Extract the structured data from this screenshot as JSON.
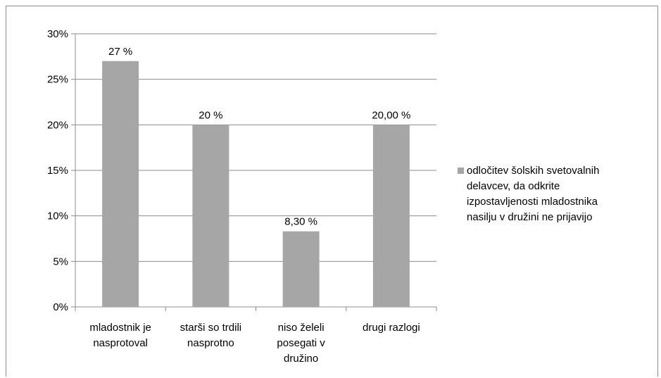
{
  "chart_data": {
    "type": "bar",
    "categories": [
      [
        "mladostnik je",
        "nasprotoval"
      ],
      [
        "starši so trdili",
        "nasprotno"
      ],
      [
        "niso želeli",
        "posegati v",
        "družino"
      ],
      [
        "drugi razlogi"
      ]
    ],
    "values": [
      27,
      20,
      8.3,
      20
    ],
    "data_labels": [
      "27 %",
      "20 %",
      "8,30 %",
      "20,00 %"
    ],
    "series": [
      {
        "name": "odločitev šolskih svetovalnih delavcev, da odkrite izpostavljenosti mladostnika nasilju v družini ne prijavijo",
        "values": [
          27,
          20,
          8.3,
          20
        ]
      }
    ],
    "legend_lines": [
      "odločitev šolskih svetovalnih",
      "delavcev, da odkrite",
      "izpostavljenosti mladostnika",
      "nasilju v družini ne prijavijo"
    ],
    "y_ticks": [
      "0%",
      "5%",
      "10%",
      "15%",
      "20%",
      "25%",
      "30%"
    ],
    "ylim": [
      0,
      30
    ],
    "grid": true,
    "legend_position": "right",
    "bar_color": "#a6a6a6",
    "grid_color": "#8c8c8c"
  }
}
